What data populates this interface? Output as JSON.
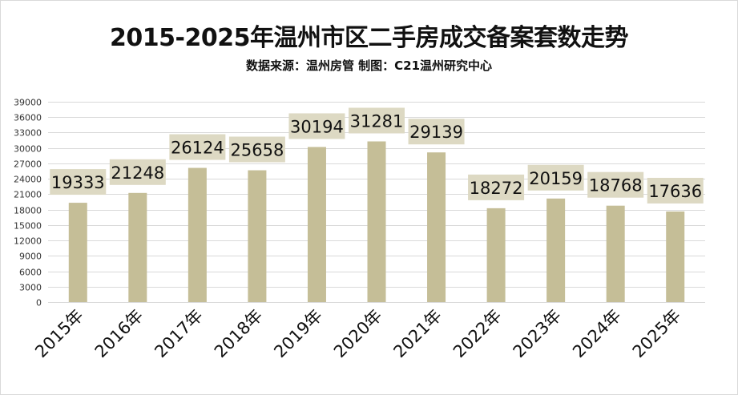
{
  "chart_data": {
    "type": "bar",
    "title": "2015-2025年温州市区二手房成交备案套数走势",
    "subtitle": "数据来源：温州房管   制图：C21温州研究中心",
    "categories": [
      "2015年",
      "2016年",
      "2017年",
      "2018年",
      "2019年",
      "2020年",
      "2021年",
      "2022年",
      "2023年",
      "2024年",
      "2025年"
    ],
    "values": [
      19333,
      21248,
      26124,
      25658,
      30194,
      31281,
      29139,
      18272,
      20159,
      18768,
      17636
    ],
    "y_ticks": [
      0,
      3000,
      6000,
      9000,
      12000,
      15000,
      18000,
      21000,
      24000,
      27000,
      30000,
      33000,
      36000,
      39000
    ],
    "ylim": [
      0,
      39000
    ],
    "grid": true,
    "legend": "none",
    "colors": {
      "bar": "#c5be97",
      "label_background": "#ddd9c3",
      "grid": "#d9d9d9",
      "text": "#111111"
    }
  }
}
